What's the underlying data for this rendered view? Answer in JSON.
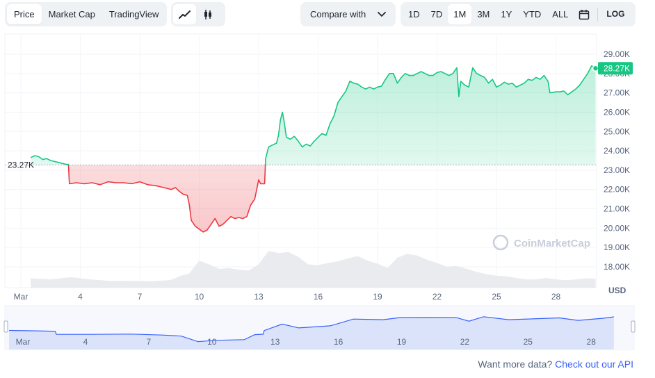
{
  "tabs": [
    "Price",
    "Market Cap",
    "TradingView"
  ],
  "active_tab": "Price",
  "chart_type_icons": [
    "line-chart-icon",
    "candlestick-icon"
  ],
  "compare": {
    "label": "Compare with",
    "icon": "chevron-down-icon"
  },
  "ranges": [
    "1D",
    "7D",
    "1M",
    "3M",
    "1Y",
    "YTD",
    "ALL"
  ],
  "active_range": "1M",
  "calendar_icon": "calendar-icon",
  "log_label": "LOG",
  "watermark": "CoinMarketCap",
  "footer": {
    "text": "Want more data?",
    "link": "Check out our API"
  },
  "colors": {
    "up": "#16c784",
    "down": "#ea3943",
    "nav": "#3861fb"
  },
  "chart_data": {
    "type": "area",
    "unit": "USD",
    "baseline": 23270,
    "baseline_label": "23.27K",
    "current_value": 28270,
    "current_label": "28.27K",
    "ylim": [
      17300,
      29300
    ],
    "y_ticks": [
      {
        "v": 18000,
        "label": "18.00K"
      },
      {
        "v": 19000,
        "label": "19.00K"
      },
      {
        "v": 20000,
        "label": "20.00K"
      },
      {
        "v": 21000,
        "label": "21.00K"
      },
      {
        "v": 22000,
        "label": "22.00K"
      },
      {
        "v": 23000,
        "label": "23.00K"
      },
      {
        "v": 24000,
        "label": "24.00K"
      },
      {
        "v": 25000,
        "label": "25.00K"
      },
      {
        "v": 26000,
        "label": "26.00K"
      },
      {
        "v": 27000,
        "label": "27.00K"
      },
      {
        "v": 28000,
        "label": "28.00K"
      },
      {
        "v": 29000,
        "label": "29.00K"
      }
    ],
    "x_ticks": [
      {
        "day": 1,
        "label": "Mar"
      },
      {
        "day": 4,
        "label": "4"
      },
      {
        "day": 7,
        "label": "7"
      },
      {
        "day": 10,
        "label": "10"
      },
      {
        "day": 13,
        "label": "13"
      },
      {
        "day": 16,
        "label": "16"
      },
      {
        "day": 19,
        "label": "19"
      },
      {
        "day": 22,
        "label": "22"
      },
      {
        "day": 25,
        "label": "25"
      },
      {
        "day": 28,
        "label": "28"
      }
    ],
    "nav_ticks": [
      {
        "day": 1,
        "label": "Mar"
      },
      {
        "day": 4,
        "label": "4"
      },
      {
        "day": 7,
        "label": "7"
      },
      {
        "day": 10,
        "label": "10"
      },
      {
        "day": 13,
        "label": "13"
      },
      {
        "day": 16,
        "label": "16"
      },
      {
        "day": 19,
        "label": "19"
      },
      {
        "day": 22,
        "label": "22"
      },
      {
        "day": 25,
        "label": "25"
      },
      {
        "day": 28,
        "label": "28"
      }
    ],
    "price": [
      [
        1.5,
        23650
      ],
      [
        1.7,
        23750
      ],
      [
        1.9,
        23700
      ],
      [
        2.1,
        23550
      ],
      [
        2.3,
        23600
      ],
      [
        2.5,
        23500
      ],
      [
        2.7,
        23450
      ],
      [
        2.9,
        23400
      ],
      [
        3.1,
        23350
      ],
      [
        3.3,
        23300
      ],
      [
        3.4,
        23300
      ],
      [
        3.45,
        22300
      ],
      [
        3.8,
        22350
      ],
      [
        4.2,
        22300
      ],
      [
        4.6,
        22350
      ],
      [
        5.0,
        22250
      ],
      [
        5.4,
        22400
      ],
      [
        5.8,
        22350
      ],
      [
        6.2,
        22350
      ],
      [
        6.6,
        22300
      ],
      [
        7.0,
        22400
      ],
      [
        7.4,
        22250
      ],
      [
        7.8,
        22200
      ],
      [
        8.2,
        22100
      ],
      [
        8.6,
        22000
      ],
      [
        8.8,
        22100
      ],
      [
        9.0,
        21900
      ],
      [
        9.2,
        21750
      ],
      [
        9.4,
        21700
      ],
      [
        9.5,
        21200
      ],
      [
        9.6,
        20400
      ],
      [
        9.8,
        20100
      ],
      [
        10.0,
        19950
      ],
      [
        10.2,
        19800
      ],
      [
        10.4,
        19900
      ],
      [
        10.6,
        20200
      ],
      [
        10.8,
        20500
      ],
      [
        11.0,
        20100
      ],
      [
        11.2,
        20200
      ],
      [
        11.4,
        20400
      ],
      [
        11.6,
        20600
      ],
      [
        11.8,
        20500
      ],
      [
        12.0,
        20550
      ],
      [
        12.2,
        20500
      ],
      [
        12.4,
        20600
      ],
      [
        12.6,
        21200
      ],
      [
        12.8,
        21500
      ],
      [
        12.9,
        22000
      ],
      [
        13.0,
        22500
      ],
      [
        13.1,
        22300
      ],
      [
        13.3,
        22300
      ],
      [
        13.35,
        23600
      ],
      [
        13.5,
        24200
      ],
      [
        13.7,
        24300
      ],
      [
        13.9,
        24400
      ],
      [
        14.0,
        24800
      ],
      [
        14.1,
        25600
      ],
      [
        14.2,
        26000
      ],
      [
        14.3,
        25400
      ],
      [
        14.4,
        24700
      ],
      [
        14.6,
        24600
      ],
      [
        14.8,
        24750
      ],
      [
        15.0,
        24500
      ],
      [
        15.2,
        24200
      ],
      [
        15.4,
        24350
      ],
      [
        15.6,
        24250
      ],
      [
        15.8,
        24500
      ],
      [
        16.0,
        24700
      ],
      [
        16.2,
        24900
      ],
      [
        16.4,
        24800
      ],
      [
        16.6,
        25400
      ],
      [
        16.8,
        25800
      ],
      [
        17.0,
        26500
      ],
      [
        17.2,
        26800
      ],
      [
        17.4,
        27100
      ],
      [
        17.6,
        27600
      ],
      [
        17.8,
        27500
      ],
      [
        18.0,
        27450
      ],
      [
        18.2,
        27300
      ],
      [
        18.4,
        27200
      ],
      [
        18.6,
        27300
      ],
      [
        18.8,
        27200
      ],
      [
        19.0,
        27300
      ],
      [
        19.2,
        27350
      ],
      [
        19.4,
        27700
      ],
      [
        19.6,
        28000
      ],
      [
        19.8,
        28000
      ],
      [
        20.0,
        27500
      ],
      [
        20.2,
        27800
      ],
      [
        20.4,
        28000
      ],
      [
        20.6,
        27900
      ],
      [
        20.8,
        27900
      ],
      [
        21.0,
        28000
      ],
      [
        21.2,
        28100
      ],
      [
        21.4,
        28000
      ],
      [
        21.6,
        27900
      ],
      [
        21.8,
        27900
      ],
      [
        22.0,
        28050
      ],
      [
        22.2,
        28100
      ],
      [
        22.4,
        28000
      ],
      [
        22.6,
        27900
      ],
      [
        22.8,
        28000
      ],
      [
        23.0,
        28300
      ],
      [
        23.1,
        26800
      ],
      [
        23.2,
        27600
      ],
      [
        23.4,
        27400
      ],
      [
        23.6,
        27300
      ],
      [
        23.8,
        28300
      ],
      [
        24.0,
        28000
      ],
      [
        24.2,
        27900
      ],
      [
        24.4,
        27800
      ],
      [
        24.6,
        27500
      ],
      [
        24.8,
        27700
      ],
      [
        25.0,
        27300
      ],
      [
        25.2,
        27400
      ],
      [
        25.4,
        27550
      ],
      [
        25.6,
        27450
      ],
      [
        25.8,
        27500
      ],
      [
        26.0,
        27300
      ],
      [
        26.2,
        27400
      ],
      [
        26.4,
        27500
      ],
      [
        26.6,
        27700
      ],
      [
        26.8,
        27650
      ],
      [
        27.0,
        27800
      ],
      [
        27.2,
        27700
      ],
      [
        27.4,
        27900
      ],
      [
        27.6,
        27600
      ],
      [
        27.7,
        27000
      ],
      [
        28.0,
        27050
      ],
      [
        28.2,
        27050
      ],
      [
        28.4,
        27100
      ],
      [
        28.6,
        26900
      ],
      [
        28.8,
        27050
      ],
      [
        29.0,
        27200
      ],
      [
        29.2,
        27400
      ],
      [
        29.4,
        27700
      ],
      [
        29.6,
        28000
      ],
      [
        29.8,
        28400
      ],
      [
        30.0,
        28270
      ]
    ],
    "nav_series": [
      [
        1.2,
        23650
      ],
      [
        2.0,
        23550
      ],
      [
        3.0,
        23400
      ],
      [
        3.4,
        23300
      ],
      [
        3.45,
        22300
      ],
      [
        5.0,
        22300
      ],
      [
        7.0,
        22400
      ],
      [
        8.5,
        22050
      ],
      [
        9.4,
        21700
      ],
      [
        10.2,
        19800
      ],
      [
        11.0,
        20250
      ],
      [
        12.4,
        20500
      ],
      [
        12.9,
        22200
      ],
      [
        13.3,
        22350
      ],
      [
        13.35,
        23600
      ],
      [
        14.2,
        25800
      ],
      [
        15.0,
        24500
      ],
      [
        16.5,
        25200
      ],
      [
        17.6,
        27500
      ],
      [
        19.0,
        27300
      ],
      [
        19.8,
        28000
      ],
      [
        21.0,
        28050
      ],
      [
        22.5,
        28000
      ],
      [
        23.1,
        26800
      ],
      [
        23.8,
        28300
      ],
      [
        25.0,
        27300
      ],
      [
        27.4,
        27900
      ],
      [
        28.3,
        27050
      ],
      [
        29.5,
        27800
      ],
      [
        30.0,
        28270
      ]
    ],
    "volume_relative": [
      [
        1.5,
        0.25
      ],
      [
        2.5,
        0.22
      ],
      [
        3.5,
        0.28
      ],
      [
        4.5,
        0.22
      ],
      [
        5.5,
        0.18
      ],
      [
        6.5,
        0.18
      ],
      [
        7.5,
        0.17
      ],
      [
        8.5,
        0.2
      ],
      [
        9.0,
        0.3
      ],
      [
        9.5,
        0.38
      ],
      [
        10.0,
        0.72
      ],
      [
        10.5,
        0.62
      ],
      [
        11.0,
        0.5
      ],
      [
        11.5,
        0.52
      ],
      [
        12.0,
        0.48
      ],
      [
        12.5,
        0.46
      ],
      [
        13.0,
        0.62
      ],
      [
        13.5,
        0.98
      ],
      [
        14.0,
        0.92
      ],
      [
        14.5,
        0.95
      ],
      [
        15.0,
        0.82
      ],
      [
        15.5,
        0.62
      ],
      [
        16.0,
        0.6
      ],
      [
        16.5,
        0.66
      ],
      [
        17.0,
        0.7
      ],
      [
        17.5,
        0.78
      ],
      [
        18.0,
        0.84
      ],
      [
        18.5,
        0.72
      ],
      [
        19.0,
        0.64
      ],
      [
        19.5,
        0.52
      ],
      [
        20.0,
        0.8
      ],
      [
        20.5,
        0.9
      ],
      [
        21.0,
        0.86
      ],
      [
        21.5,
        0.74
      ],
      [
        22.0,
        0.66
      ],
      [
        22.5,
        0.56
      ],
      [
        23.0,
        0.58
      ],
      [
        23.5,
        0.5
      ],
      [
        24.0,
        0.42
      ],
      [
        24.5,
        0.36
      ],
      [
        25.0,
        0.32
      ],
      [
        25.5,
        0.3
      ],
      [
        26.0,
        0.26
      ],
      [
        26.5,
        0.22
      ],
      [
        27.0,
        0.22
      ],
      [
        27.5,
        0.26
      ],
      [
        28.0,
        0.22
      ],
      [
        28.5,
        0.2
      ],
      [
        29.0,
        0.22
      ],
      [
        29.5,
        0.25
      ],
      [
        30.0,
        0.24
      ]
    ]
  }
}
